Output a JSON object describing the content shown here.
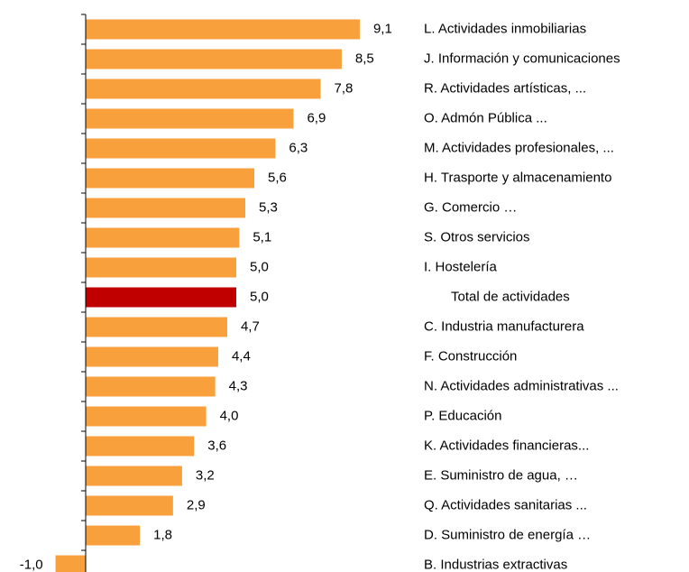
{
  "chart_data": {
    "type": "bar",
    "orientation": "horizontal",
    "categories": [
      "L. Actividades inmobiliarias",
      "J. Información y comunicaciones",
      "R. Actividades artísticas, ...",
      "O. Admón Pública ...",
      "M. Actividades profesionales, ...",
      "H. Trasporte y almacenamiento",
      "G. Comercio …",
      "S. Otros servicios",
      "I. Hostelería",
      "Total de actividades",
      "C. Industria manufacturera",
      "F. Construcción",
      "N. Actividades administrativas ...",
      "P. Educación",
      "K. Actividades financieras...",
      "E. Suministro de agua, …",
      "Q. Actividades sanitarias ...",
      "D. Suministro de energía …",
      "B. Industrias extractivas"
    ],
    "values": [
      9.1,
      8.5,
      7.8,
      6.9,
      6.3,
      5.6,
      5.3,
      5.1,
      5.0,
      5.0,
      4.7,
      4.4,
      4.3,
      4.0,
      3.6,
      3.2,
      2.9,
      1.8,
      -1.0
    ],
    "value_labels": [
      "9,1",
      "8,5",
      "7,8",
      "6,9",
      "6,3",
      "5,6",
      "5,3",
      "5,1",
      "5,0",
      "5,0",
      "4,7",
      "4,4",
      "4,3",
      "4,0",
      "3,6",
      "3,2",
      "2,9",
      "1,8",
      "-1,0"
    ],
    "colors": [
      "#f7a03c",
      "#f7a03c",
      "#f7a03c",
      "#f7a03c",
      "#f7a03c",
      "#f7a03c",
      "#f7a03c",
      "#f7a03c",
      "#f7a03c",
      "#c00000",
      "#f7a03c",
      "#f7a03c",
      "#f7a03c",
      "#f7a03c",
      "#f7a03c",
      "#f7a03c",
      "#f7a03c",
      "#f7a03c",
      "#f7a03c"
    ]
  }
}
